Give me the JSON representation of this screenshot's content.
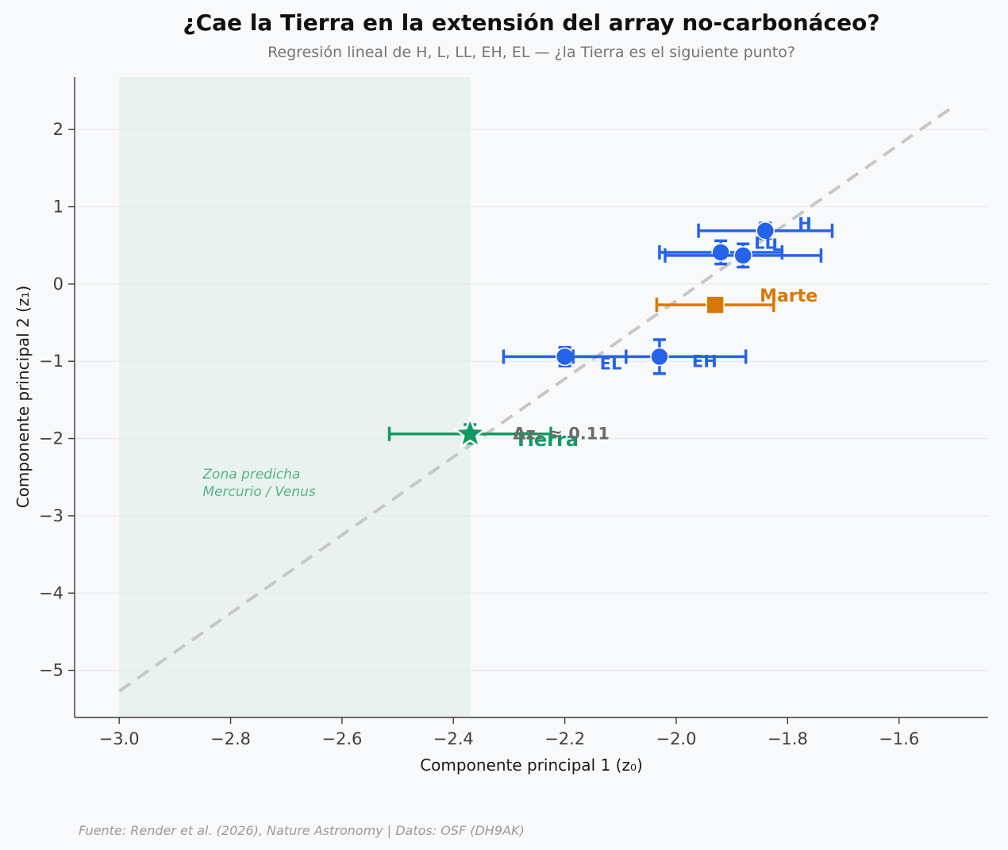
{
  "title": "¿Cae la Tierra en la extensión del array no-carbonáceo?",
  "subtitle": "Regresión lineal de H, L, LL, EH, EL — ¿la Tierra es el siguiente punto?",
  "footer": "Fuente: Render et al. (2026), Nature Astronomy | Datos: OSF (DH9AK)",
  "chart_data": {
    "type": "scatter",
    "title": "¿Cae la Tierra en la extensión del array no-carbonáceo?",
    "subtitle": "Regresión lineal de H, L, LL, EH, EL — ¿la Tierra es el siguiente punto?",
    "xlabel": "Componente principal 1 (z₀)",
    "ylabel": "Componente principal 2 (z₁)",
    "xlim": [
      -3.08,
      -1.44
    ],
    "ylim": [
      -5.61,
      2.68
    ],
    "grid": "horizontal-only",
    "grid_color": "#e9e9ec",
    "axis_color": "#3a3a3a",
    "tick_color": "#3f3f3f",
    "xticks": {
      "values": [
        -3.0,
        -2.8,
        -2.6,
        -2.4,
        -2.2,
        -2.0,
        -1.8,
        -1.6
      ],
      "labels": [
        "−3.0",
        "−2.8",
        "−2.6",
        "−2.4",
        "−2.2",
        "−2.0",
        "−1.8",
        "−1.6"
      ]
    },
    "yticks": {
      "values": [
        2,
        1,
        0,
        -1,
        -2,
        -3,
        -4,
        -5
      ],
      "labels": [
        "2",
        "1",
        "0",
        "−1",
        "−2",
        "−3",
        "−4",
        "−5"
      ]
    },
    "series": [
      {
        "name": "H",
        "x": -1.84,
        "y": 0.69,
        "xerr": 0.12,
        "yerr": 0.1,
        "marker": "circle",
        "color": "#2563eb",
        "label_dx": 41,
        "label_dy": -9,
        "label_size": 21
      },
      {
        "name": "LL",
        "x": -1.92,
        "y": 0.41,
        "xerr": 0.11,
        "yerr": 0.15,
        "marker": "circle",
        "color": "#2563eb",
        "label_dx": 42,
        "label_dy": -12,
        "label_size": 21
      },
      {
        "name": "L",
        "x": -1.88,
        "y": 0.37,
        "xerr": 0.14,
        "yerr": 0.15,
        "marker": "circle",
        "color": "#2563eb",
        "label_dx": 36,
        "label_dy": -13,
        "label_size": 21
      },
      {
        "name": "EL",
        "x": -2.2,
        "y": -0.94,
        "xerr": 0.11,
        "yerr": 0.12,
        "marker": "circle",
        "color": "#2563eb",
        "label_dx": 44,
        "label_dy": 9,
        "label_size": 21
      },
      {
        "name": "EH",
        "x": -2.03,
        "y": -0.94,
        "xerr": 0.155,
        "yerr": 0.22,
        "marker": "circle",
        "color": "#2563eb",
        "label_dx": 41,
        "label_dy": 6,
        "label_size": 21
      },
      {
        "name": "Marte",
        "x": -1.93,
        "y": -0.27,
        "xerr": 0.105,
        "yerr": 0.1,
        "marker": "square",
        "color": "#d97706",
        "label_dx": 56,
        "label_dy": -12,
        "label_size": 22
      },
      {
        "name": "Tierra",
        "x": -2.37,
        "y": -1.94,
        "xerr": 0.145,
        "yerr": 0.12,
        "marker": "star",
        "color": "#139a63",
        "label_dx": 56,
        "label_dy": 7,
        "label_size": 24
      }
    ],
    "trendline": {
      "x1": -3.0,
      "y1": -5.27,
      "x2": -1.5,
      "y2": 2.31,
      "style": "dashed",
      "color": "#c7c7c7"
    },
    "zone": {
      "x_min": -3.0,
      "x_max": -2.37,
      "fill": "#e9f2ee",
      "label_lines": [
        "Zona predicha",
        "Mercurio / Venus"
      ],
      "label_x": -2.85,
      "label_y": -2.52,
      "text_color": "#56b389"
    },
    "annotation": {
      "text": "Δz₁ ≈ 0.11",
      "attach_to": "Tierra",
      "dx": 54,
      "dy": 0,
      "color": "#6b6b6b"
    }
  }
}
